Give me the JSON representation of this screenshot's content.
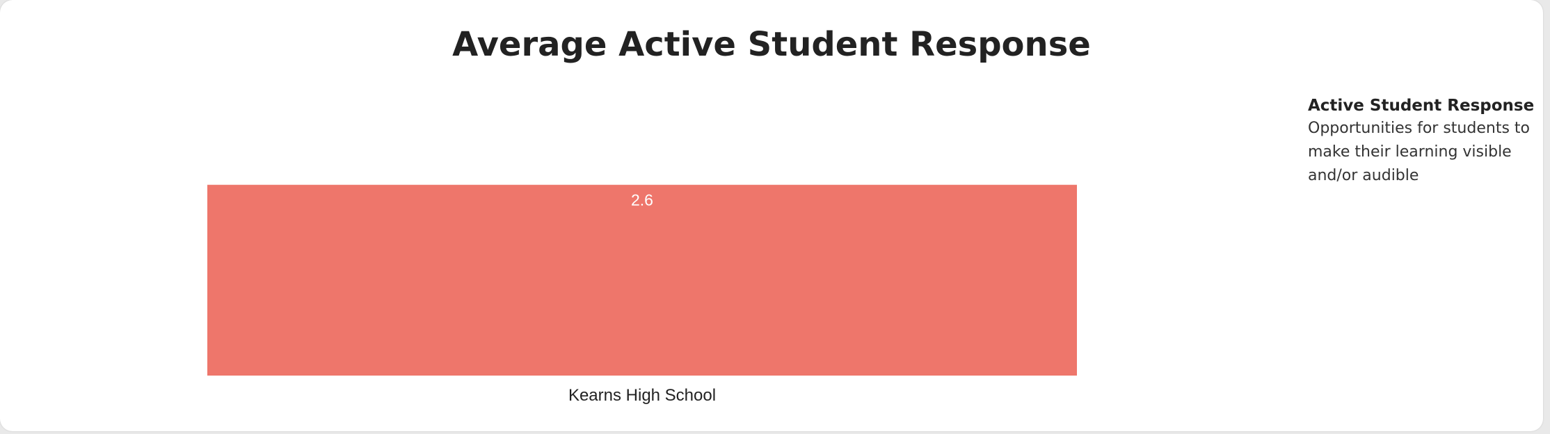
{
  "chart_data": {
    "type": "bar",
    "title": "Average Active Student Response",
    "categories": [
      "Kearns High School"
    ],
    "values": [
      2.6
    ],
    "data_labels": [
      "2.6"
    ],
    "xlabel": "",
    "ylabel": "",
    "ylim": [
      0,
      4
    ],
    "grid": false,
    "bar_color": "#ee766b",
    "label_color": "#ffffff"
  },
  "legend": {
    "title": "Active Student Response",
    "description": "Opportunities for students to make their learning visible and/or audible"
  }
}
